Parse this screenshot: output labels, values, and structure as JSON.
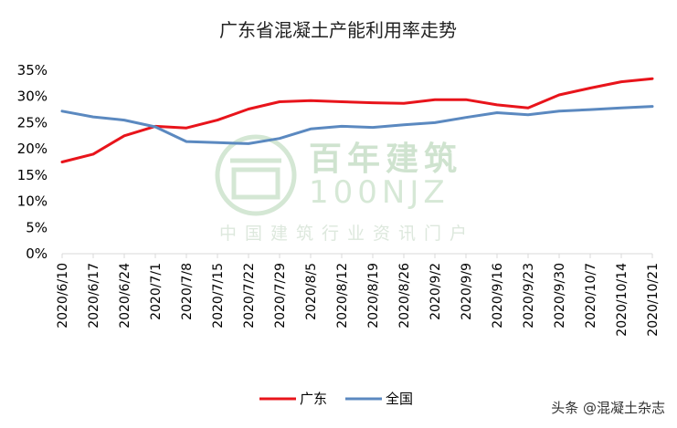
{
  "chart_data": {
    "type": "line",
    "title": "广东省混凝土产能利用率走势",
    "ylim": [
      0,
      35
    ],
    "yticks": [
      "0%",
      "5%",
      "10%",
      "15%",
      "20%",
      "25%",
      "30%",
      "35%"
    ],
    "categories": [
      "2020/6/10",
      "2020/6/17",
      "2020/6/24",
      "2020/7/1",
      "2020/7/8",
      "2020/7/15",
      "2020/7/22",
      "2020/7/29",
      "2020/8/5",
      "2020/8/12",
      "2020/8/19",
      "2020/8/26",
      "2020/9/2",
      "2020/9/9",
      "2020/9/16",
      "2020/9/23",
      "2020/9/30",
      "2020/10/7",
      "2020/10/14",
      "2020/10/21"
    ],
    "series": [
      {
        "name": "广东",
        "color": "#e8141b",
        "values": [
          17.5,
          19.0,
          22.5,
          24.3,
          24.0,
          25.5,
          27.6,
          29.0,
          29.2,
          29.0,
          28.8,
          28.7,
          29.4,
          29.4,
          28.4,
          27.8,
          30.3,
          31.6,
          32.8,
          33.4
        ]
      },
      {
        "name": "全国",
        "color": "#5b89c0",
        "values": [
          27.2,
          26.1,
          25.5,
          24.2,
          21.4,
          21.2,
          21.0,
          22.0,
          23.8,
          24.3,
          24.1,
          24.6,
          25.0,
          26.0,
          26.9,
          26.5,
          27.2,
          27.5,
          27.8,
          28.1
        ]
      }
    ],
    "grid": false,
    "legend": "bottom-center"
  },
  "watermark": {
    "cn": "百年建筑",
    "en": "100NJZ",
    "sub": "中国建筑行业资讯门户"
  },
  "credit": "头条 @混凝土杂志"
}
